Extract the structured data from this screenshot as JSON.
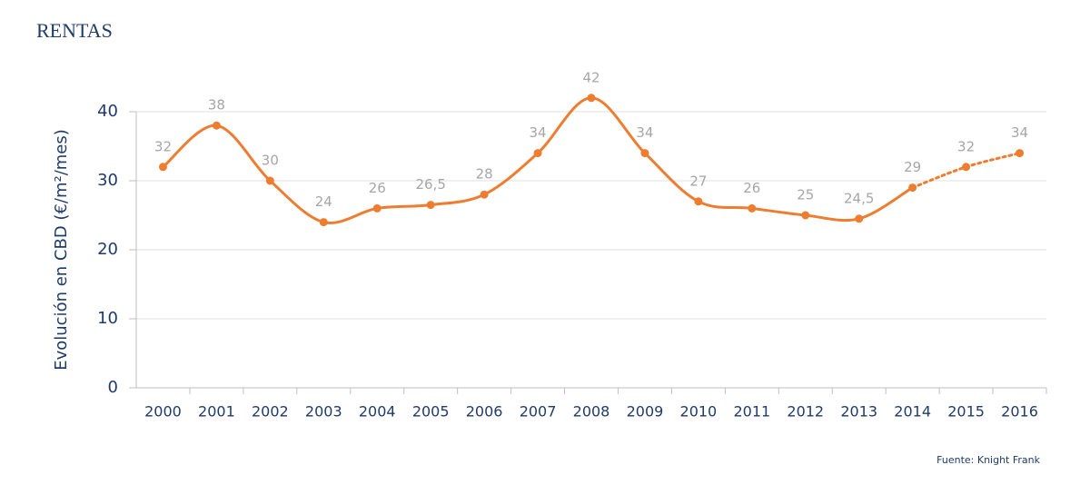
{
  "chart_data": {
    "type": "line",
    "title": "RENTAS",
    "y_label": "Evolución en CBD (€/m²/mes)",
    "source": "Fuente: Knight Frank",
    "categories": [
      "2000",
      "2001",
      "2002",
      "2003",
      "2004",
      "2005",
      "2006",
      "2007",
      "2008",
      "2009",
      "2010",
      "2011",
      "2012",
      "2013",
      "2014",
      "2015",
      "2016"
    ],
    "series": [
      {
        "color": "#ed7d31",
        "values": [
          32,
          38,
          30,
          24,
          26,
          26.5,
          28,
          34,
          42,
          34,
          27,
          26,
          25,
          24.5,
          29,
          32,
          34
        ],
        "value_labels": [
          "32",
          "38",
          "30",
          "24",
          "26",
          "26,5",
          "28",
          "34",
          "42",
          "34",
          "27",
          "26",
          "25",
          "24,5",
          "29",
          "32",
          "34"
        ]
      }
    ],
    "dotted_from_index": 14,
    "smooth": true,
    "ylim": [
      0,
      40
    ],
    "yticks": [
      0,
      10,
      20,
      30,
      40
    ],
    "grid": true
  }
}
